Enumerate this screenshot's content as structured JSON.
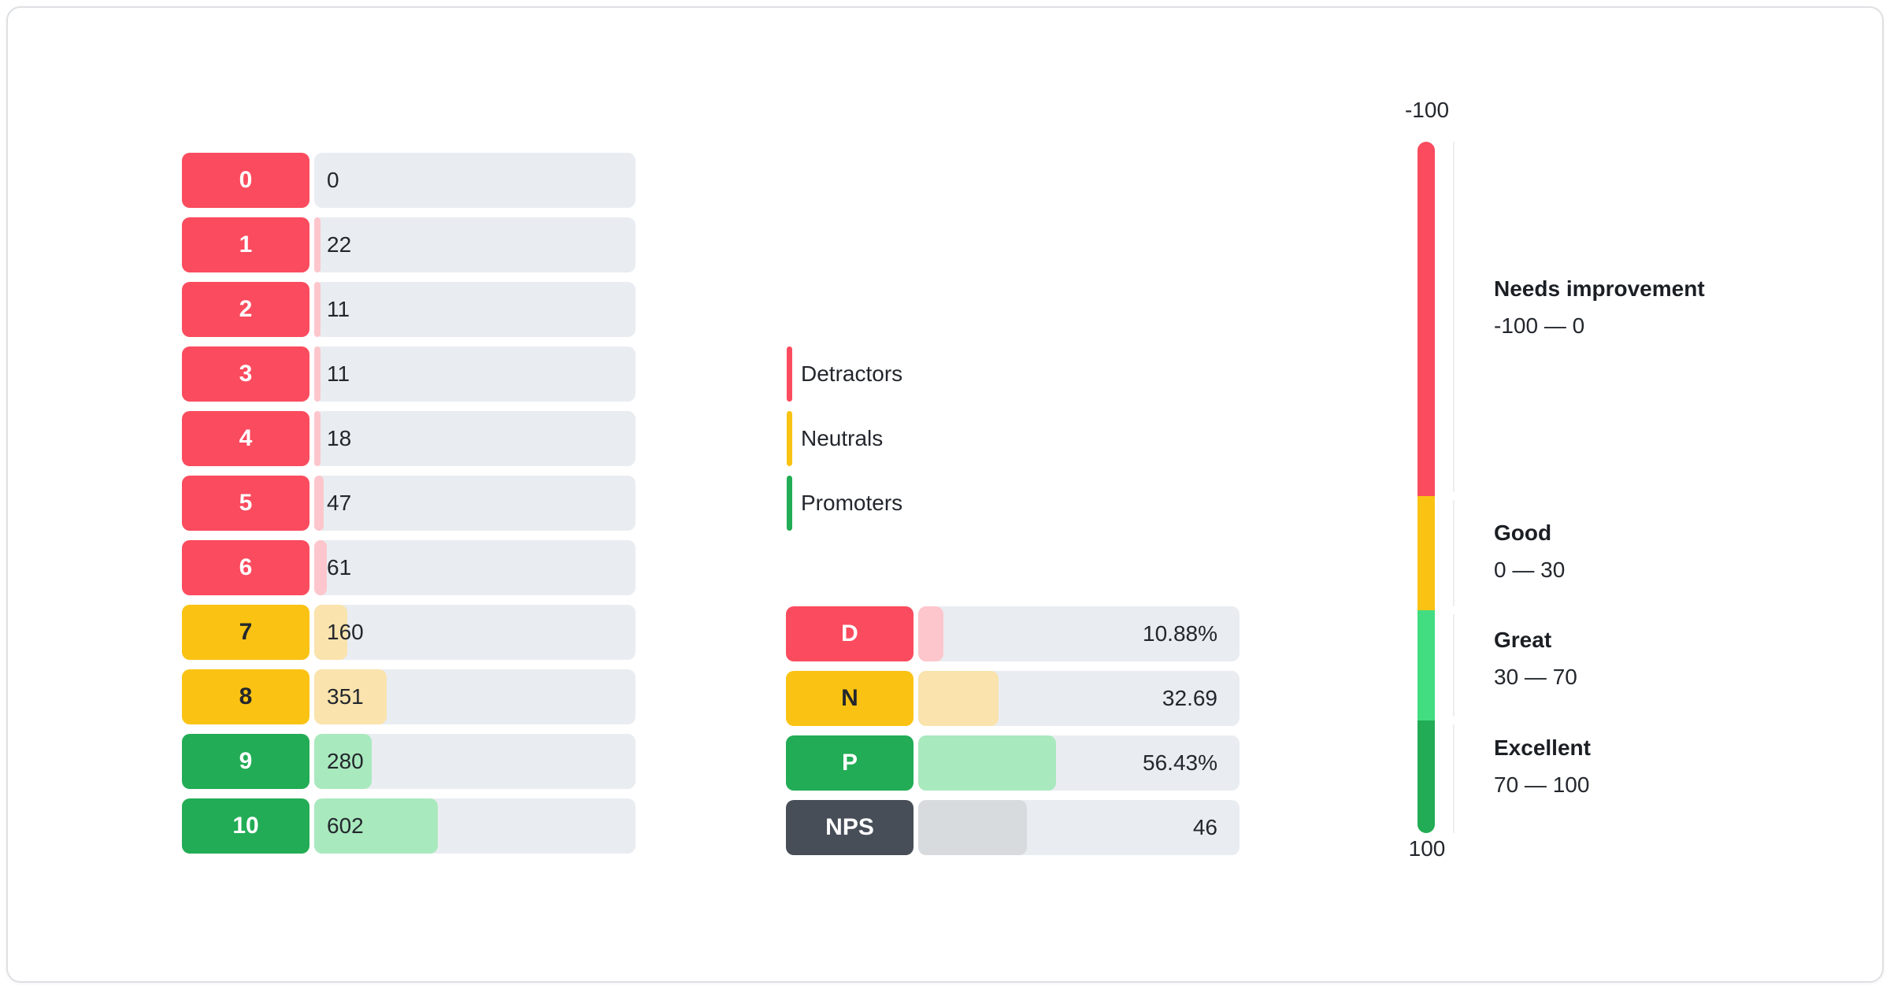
{
  "colors": {
    "red": "#FB4B5E",
    "red_light": "#FCC6CC",
    "yellow": "#FAC313",
    "yellow_light": "#FAE3AC",
    "green": "#22AC55",
    "green_light": "#A9E9BE",
    "great_green": "#43DD81",
    "slate": "#474E58",
    "slate_light": "#D7DBDE",
    "track": "#E9EDF1",
    "text": "#23272D",
    "heading": "#1B1F24",
    "white": "#FFFFFF"
  },
  "legend": {
    "items": [
      {
        "label": "Detractors",
        "group": "detractor"
      },
      {
        "label": "Neutrals",
        "group": "neutral"
      },
      {
        "label": "Promoters",
        "group": "promoter"
      }
    ]
  },
  "chart_data": {
    "type": "bar",
    "distribution": {
      "rows": [
        {
          "score": "0",
          "count": 0,
          "group": "detractor"
        },
        {
          "score": "1",
          "count": 22,
          "group": "detractor"
        },
        {
          "score": "2",
          "count": 11,
          "group": "detractor"
        },
        {
          "score": "3",
          "count": 11,
          "group": "detractor"
        },
        {
          "score": "4",
          "count": 18,
          "group": "detractor"
        },
        {
          "score": "5",
          "count": 47,
          "group": "detractor"
        },
        {
          "score": "6",
          "count": 61,
          "group": "detractor"
        },
        {
          "score": "7",
          "count": 160,
          "group": "neutral"
        },
        {
          "score": "8",
          "count": 351,
          "group": "neutral"
        },
        {
          "score": "9",
          "count": 280,
          "group": "promoter"
        },
        {
          "score": "10",
          "count": 602,
          "group": "promoter"
        }
      ]
    },
    "summary": {
      "rows": [
        {
          "label": "D",
          "display": "10.88%",
          "value": 10.88,
          "fill_pct": 7.9,
          "group": "detractor"
        },
        {
          "label": "N",
          "display": "32.69",
          "value": 32.69,
          "fill_pct": 25.1,
          "group": "neutral"
        },
        {
          "label": "P",
          "display": "56.43%",
          "value": 56.43,
          "fill_pct": 42.8,
          "group": "promoter"
        },
        {
          "label": "NPS",
          "display": "46",
          "value": 46,
          "fill_pct": 33.9,
          "group": "nps"
        }
      ]
    },
    "gauge": {
      "top_tick": "-100",
      "bottom_tick": "100",
      "segments": [
        {
          "label": "Needs improvement",
          "range": "-100 — 0",
          "color_key": "red",
          "height_pct": 51.3
        },
        {
          "label": "Good",
          "range": "0 — 30",
          "color_key": "yellow",
          "height_pct": 16.5
        },
        {
          "label": "Great",
          "range": "30 — 70",
          "color_key": "great_green",
          "height_pct": 15.9
        },
        {
          "label": "Excellent",
          "range": "70 — 100",
          "color_key": "green",
          "height_pct": 16.3
        }
      ]
    }
  }
}
